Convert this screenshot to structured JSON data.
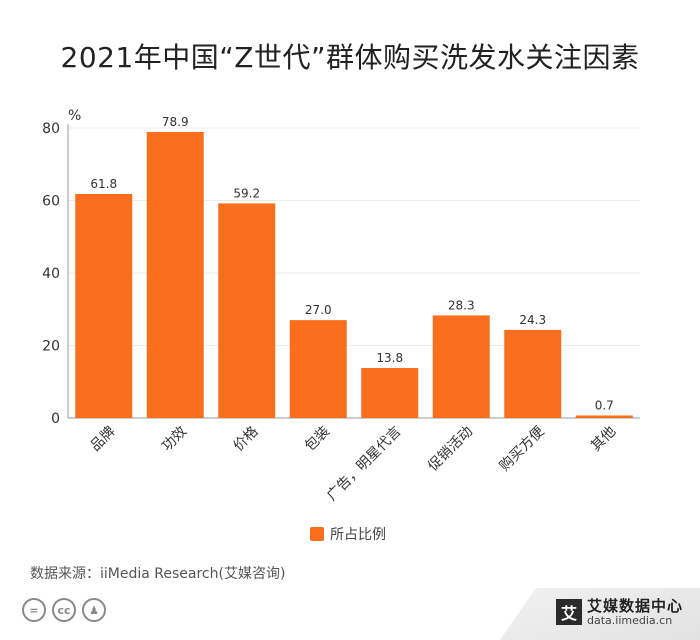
{
  "chart_data": {
    "type": "bar",
    "title": "2021年中国“Z世代”群体购买洗发水关注因素",
    "ylabel": "%",
    "ylim": [
      0,
      80
    ],
    "yticks": [
      0,
      20,
      40,
      60,
      80
    ],
    "grid": true,
    "legend_position": "bottom",
    "categories": [
      "品牌",
      "功效",
      "价格",
      "包装",
      "广告，明星代言",
      "促销活动",
      "购买方便",
      "其他"
    ],
    "series": [
      {
        "name": "所占比例",
        "values": [
          61.8,
          78.9,
          59.2,
          27.0,
          13.8,
          28.3,
          24.3,
          0.7
        ],
        "color": "#f96f1e"
      }
    ]
  },
  "footer": {
    "source": "数据来源：iiMedia Research(艾媒咨询)",
    "cc_icons": [
      {
        "icon": "equals-icon",
        "glyph": "="
      },
      {
        "icon": "cc-icon",
        "glyph": "cc"
      },
      {
        "icon": "person-icon",
        "glyph": "♟"
      }
    ],
    "logo_mark": "艾",
    "logo_name": "艾媒数据中心",
    "logo_url": "data.iimedia.cn"
  }
}
